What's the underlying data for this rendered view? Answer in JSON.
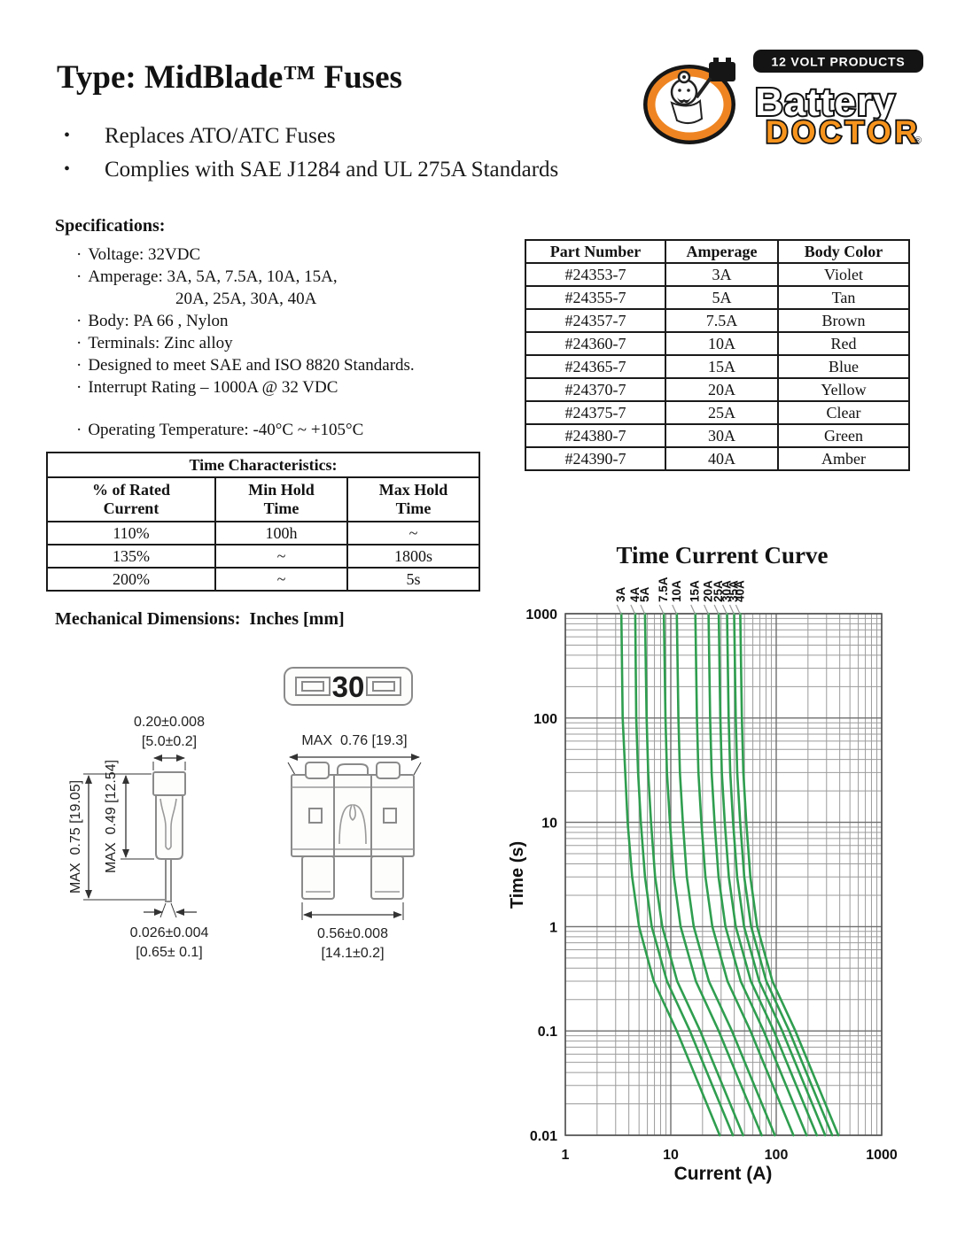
{
  "page": {
    "title": "Type: MidBlade™ Fuses",
    "bullets": [
      "Replaces ATO/ATC Fuses",
      "Complies with SAE J1284 and UL 275A Standards"
    ]
  },
  "logo": {
    "tagline": "12 VOLT PRODUCTS",
    "brand_top": "Battery",
    "brand_bottom": "DOCTOR",
    "registered_mark": "®",
    "orange": "#f7941d",
    "black": "#141414"
  },
  "specifications": {
    "heading": "Specifications:",
    "items": [
      {
        "text": "Voltage: 32VDC"
      },
      {
        "text": "Amperage: 3A, 5A, 7.5A, 10A, 15A,",
        "text2": "20A, 25A, 30A, 40A"
      },
      {
        "text": "Body: PA 66 , Nylon"
      },
      {
        "text": "Terminals: Zinc alloy"
      },
      {
        "text": "Designed to meet SAE and ISO 8820 Standards."
      },
      {
        "text": "Interrupt Rating – 1000A @ 32 VDC"
      },
      {
        "text": "Operating Temperature: -40°C ~ +105°C",
        "gap": true
      }
    ]
  },
  "part_table": {
    "columns": [
      "Part Number",
      "Amperage",
      "Body Color"
    ],
    "rows": [
      [
        "#24353-7",
        "3A",
        "Violet"
      ],
      [
        "#24355-7",
        "5A",
        "Tan"
      ],
      [
        "#24357-7",
        "7.5A",
        "Brown"
      ],
      [
        "#24360-7",
        "10A",
        "Red"
      ],
      [
        "#24365-7",
        "15A",
        "Blue"
      ],
      [
        "#24370-7",
        "20A",
        "Yellow"
      ],
      [
        "#24375-7",
        "25A",
        "Clear"
      ],
      [
        "#24380-7",
        "30A",
        "Green"
      ],
      [
        "#24390-7",
        "40A",
        "Amber"
      ]
    ]
  },
  "time_table": {
    "title": "Time Characteristics:",
    "columns": [
      "% of Rated\nCurrent",
      "Min Hold\nTime",
      "Max Hold\nTime"
    ],
    "rows": [
      [
        "110%",
        "100h",
        "~"
      ],
      [
        "135%",
        "~",
        "1800s"
      ],
      [
        "200%",
        "~",
        "5s"
      ]
    ]
  },
  "mechanical": {
    "heading": "Mechanical Dimensions:  Inches [mm]",
    "top_view_marking": "30",
    "side_view": {
      "width_in": "0.20±0.008",
      "width_mm": "[5.0±0.2]",
      "body_height": "MAX  0.49 [12.54]",
      "total_height": "MAX  0.75 [19.05]",
      "pin_in": "0.026±0.004",
      "pin_mm": "[0.65± 0.1]"
    },
    "front_view": {
      "width": "MAX  0.76 [19.3]",
      "blade_in": "0.56±0.008",
      "blade_mm": "[14.1±0.2]"
    }
  },
  "chart_data": {
    "type": "line",
    "title": "Time Current Curve",
    "xlabel": "Current (A)",
    "ylabel": "Time (s)",
    "x_scale": "log",
    "y_scale": "log",
    "xlim": [
      1,
      1000
    ],
    "ylim": [
      0.01,
      1000
    ],
    "x_ticks": [
      "1",
      "10",
      "100",
      "1000"
    ],
    "y_ticks": [
      "1000",
      "100",
      "10",
      "1",
      "0.1",
      "0.01"
    ],
    "grid": true,
    "legend_position": "labels-above-curves",
    "curve_color": "#2f9e4f",
    "times": [
      1000,
      100,
      30,
      10,
      3,
      1,
      0.3,
      0.1,
      0.03,
      0.01
    ],
    "series": [
      {
        "name": "3A",
        "rating": 3,
        "currents": [
          3.4,
          3.5,
          3.7,
          3.9,
          4.3,
          5.0,
          6.9,
          11.4,
          18.6,
          29.1
        ]
      },
      {
        "name": "4A",
        "rating": 4,
        "currents": [
          4.6,
          4.7,
          4.9,
          5.2,
          5.7,
          6.6,
          9.2,
          15.2,
          24.8,
          38.8
        ]
      },
      {
        "name": "5A",
        "rating": 5,
        "currents": [
          5.7,
          5.9,
          6.1,
          6.5,
          7.1,
          8.3,
          11.5,
          19.0,
          31.0,
          48.5
        ]
      },
      {
        "name": "7.5A",
        "rating": 7.5,
        "currents": [
          8.6,
          8.9,
          9.2,
          9.8,
          10.7,
          12.4,
          17.3,
          28.5,
          46.5,
          72.8
        ]
      },
      {
        "name": "10A",
        "rating": 10,
        "currents": [
          11.4,
          11.8,
          12.2,
          13.0,
          14.2,
          16.5,
          23.0,
          38.0,
          62.0,
          97.0
        ]
      },
      {
        "name": "15A",
        "rating": 15,
        "currents": [
          17.1,
          17.7,
          18.3,
          19.5,
          21.3,
          24.8,
          34.5,
          57.0,
          93.0,
          145.5
        ]
      },
      {
        "name": "20A",
        "rating": 20,
        "currents": [
          22.8,
          23.6,
          24.4,
          26.0,
          28.4,
          33.0,
          46.0,
          76.0,
          124.0,
          194.0
        ]
      },
      {
        "name": "25A",
        "rating": 25,
        "currents": [
          28.5,
          29.5,
          30.5,
          32.5,
          35.5,
          41.3,
          57.5,
          95.0,
          155.0,
          242.5
        ]
      },
      {
        "name": "30A",
        "rating": 30,
        "currents": [
          34.2,
          35.4,
          36.6,
          39.0,
          42.6,
          49.5,
          69.0,
          114.0,
          186.0,
          291.0
        ]
      },
      {
        "name": "35A",
        "rating": 35,
        "currents": [
          39.9,
          41.3,
          42.7,
          45.5,
          49.7,
          57.8,
          80.5,
          133.0,
          217.0,
          339.5
        ]
      },
      {
        "name": "40A",
        "rating": 40,
        "currents": [
          45.6,
          47.2,
          48.8,
          52.0,
          56.8,
          66.0,
          92.0,
          152.0,
          248.0,
          388.0
        ]
      }
    ]
  }
}
